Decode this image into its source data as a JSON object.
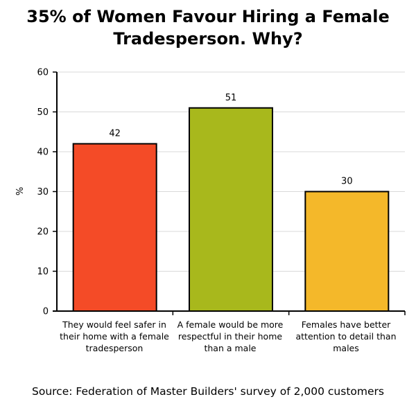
{
  "title_lines": [
    "35% of Women Favour Hiring a Female",
    "Tradesperson. Why?"
  ],
  "source": "Source: Federation of Master Builders' survey of 2,000 customers",
  "chart_data": {
    "type": "bar",
    "title": "35% of Women Favour Hiring a Female Tradesperson. Why?",
    "categories": [
      "They would feel safer in their home with a female tradesperson",
      "A female would be more respectful in their home than a male",
      "Females have better attention to detail than males"
    ],
    "values": [
      42,
      51,
      30
    ],
    "colors": [
      "#f44b27",
      "#a8b81c",
      "#f4b82a"
    ],
    "xlabel": "",
    "ylabel": "%",
    "ylim": [
      0,
      60
    ],
    "yticks": [
      0,
      10,
      20,
      30,
      40,
      50,
      60
    ],
    "grid": true,
    "data_labels": true
  }
}
